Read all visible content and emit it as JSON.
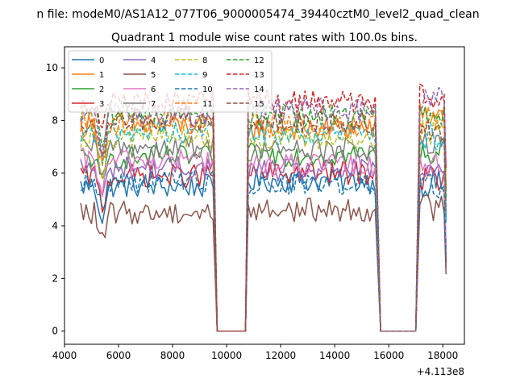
{
  "suptitle": "n file: modeM0/AS1A12_077T06_9000005474_39440cztM0_level2_quad_clean",
  "chart_data": {
    "type": "line",
    "title": "Quadrant 1 module wise count rates with 100.0s bins.",
    "xlabel": "",
    "ylabel": "",
    "x_offset_label": "+4.113e8",
    "xlim": [
      4000,
      18800
    ],
    "ylim": [
      -0.5,
      10.8
    ],
    "xticks": [
      4000,
      6000,
      8000,
      10000,
      12000,
      14000,
      16000,
      18000
    ],
    "xtick_labels": [
      "4000",
      "6000",
      "8000",
      "10000",
      "12000",
      "14000",
      "16000",
      "18000"
    ],
    "yticks": [
      0,
      2,
      4,
      6,
      8,
      10
    ],
    "ytick_labels": [
      "0",
      "2",
      "4",
      "6",
      "8",
      "10"
    ],
    "grid": false,
    "legend_placement": "top-left",
    "segments": [
      {
        "x_start": 4600,
        "x_end": 9500,
        "ramp_to": 9650
      },
      {
        "ramp_from": 10700,
        "x_start": 10800,
        "x_end": 15550,
        "ramp_to": 15700
      },
      {
        "ramp_from": 17000,
        "x_start": 17150,
        "x_end": 18100
      }
    ],
    "zero_segments": [
      [
        9650,
        10700
      ],
      [
        15700,
        17000
      ]
    ],
    "dip": {
      "x": 5400,
      "depth": 1.2
    },
    "series": [
      {
        "name": "0",
        "color": "#1f77b4",
        "dash": "solid",
        "levels": [
          5.5,
          5.7,
          5.6
        ]
      },
      {
        "name": "1",
        "color": "#ff7f0e",
        "dash": "solid",
        "levels": [
          7.8,
          7.7,
          8.2
        ]
      },
      {
        "name": "2",
        "color": "#2ca02c",
        "dash": "solid",
        "levels": [
          6.6,
          6.7,
          6.8
        ]
      },
      {
        "name": "3",
        "color": "#d62728",
        "dash": "solid",
        "levels": [
          5.9,
          6.0,
          5.8
        ]
      },
      {
        "name": "4",
        "color": "#9467bd",
        "dash": "solid",
        "levels": [
          6.2,
          6.1,
          6.0
        ]
      },
      {
        "name": "5",
        "color": "#8c564b",
        "dash": "solid",
        "levels": [
          4.5,
          4.6,
          4.7
        ]
      },
      {
        "name": "6",
        "color": "#e377c2",
        "dash": "solid",
        "levels": [
          6.5,
          6.3,
          6.4
        ]
      },
      {
        "name": "7",
        "color": "#7f7f7f",
        "dash": "solid",
        "levels": [
          7.0,
          6.9,
          7.0
        ]
      },
      {
        "name": "8",
        "color": "#bcbd22",
        "dash": "dashed",
        "levels": [
          7.4,
          7.3,
          7.5
        ]
      },
      {
        "name": "9",
        "color": "#17becf",
        "dash": "dashed",
        "levels": [
          7.6,
          7.5,
          7.4
        ]
      },
      {
        "name": "10",
        "color": "#1f77b4",
        "dash": "dashed",
        "levels": [
          5.7,
          5.6,
          5.6
        ]
      },
      {
        "name": "11",
        "color": "#ff7f0e",
        "dash": "dashed",
        "levels": [
          7.9,
          7.8,
          8.0
        ]
      },
      {
        "name": "12",
        "color": "#2ca02c",
        "dash": "dashed",
        "levels": [
          8.3,
          8.2,
          8.3
        ]
      },
      {
        "name": "13",
        "color": "#d62728",
        "dash": "dashed",
        "levels": [
          8.7,
          8.7,
          9.0
        ]
      },
      {
        "name": "14",
        "color": "#9467bd",
        "dash": "dashed",
        "levels": [
          8.2,
          8.4,
          8.9
        ]
      },
      {
        "name": "15",
        "color": "#8c564b",
        "dash": "dashed",
        "levels": [
          8.0,
          7.9,
          7.8
        ]
      }
    ]
  }
}
